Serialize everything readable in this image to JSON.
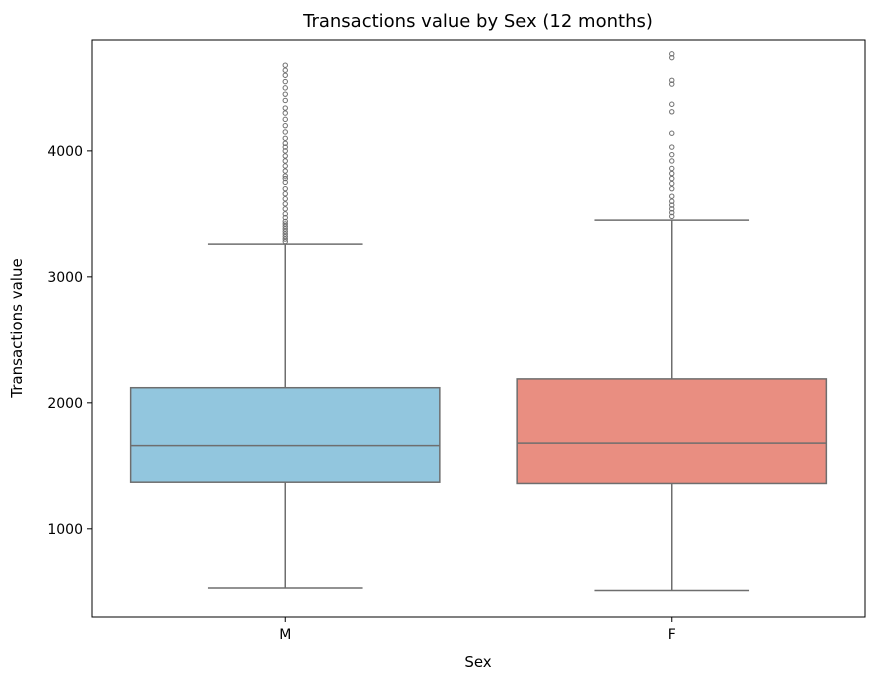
{
  "chart_data": {
    "type": "box",
    "title": "Transactions value by Sex (12 months)",
    "xlabel": "Sex",
    "ylabel": "Transactions value",
    "ylim": [
      300,
      4880
    ],
    "yticks": [
      1000,
      2000,
      3000,
      4000
    ],
    "grid": false,
    "legend": "none",
    "categories": [
      "M",
      "F"
    ],
    "series": [
      {
        "category": "M",
        "color": "#92c6de",
        "whisker_low": 530,
        "q1": 1370,
        "median": 1660,
        "q3": 2120,
        "whisker_high": 3260,
        "outliers": [
          3280,
          3300,
          3320,
          3340,
          3360,
          3380,
          3400,
          3420,
          3440,
          3470,
          3500,
          3540,
          3580,
          3620,
          3660,
          3700,
          3750,
          3780,
          3800,
          3840,
          3880,
          3920,
          3960,
          4000,
          4030,
          4060,
          4100,
          4150,
          4200,
          4250,
          4300,
          4340,
          4400,
          4450,
          4500,
          4550,
          4600,
          4640,
          4680
        ]
      },
      {
        "category": "F",
        "color": "#e98e81",
        "whisker_low": 510,
        "q1": 1360,
        "median": 1680,
        "q3": 2190,
        "whisker_high": 3450,
        "outliers": [
          3480,
          3510,
          3540,
          3570,
          3600,
          3640,
          3700,
          3740,
          3780,
          3820,
          3860,
          3920,
          3970,
          4030,
          4140,
          4310,
          4370,
          4530,
          4560,
          4740,
          4770
        ]
      }
    ]
  }
}
